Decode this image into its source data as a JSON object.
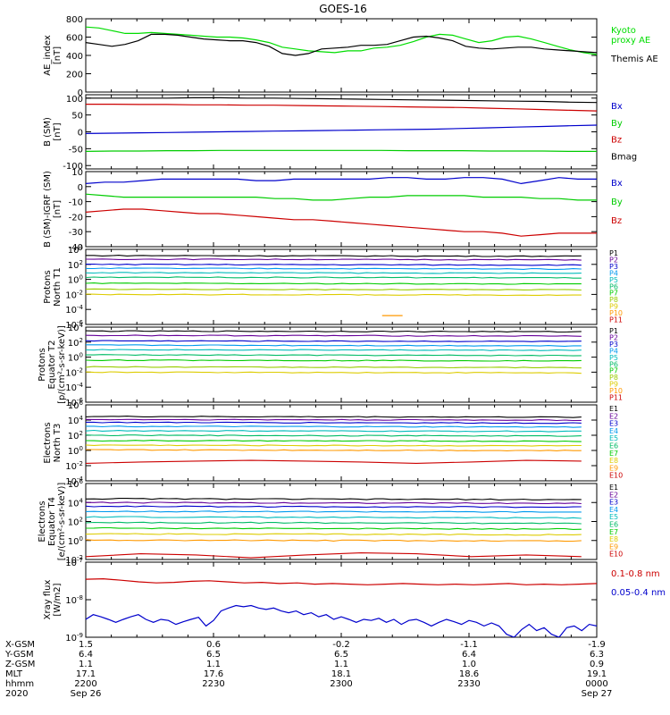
{
  "title": "GOES-16",
  "chart_data": [
    {
      "type": "line",
      "id": "ae",
      "ylabel": [
        "AE_index",
        "[nT]"
      ],
      "ylim": [
        0,
        800
      ],
      "yticks": [
        "0",
        "200",
        "400",
        "600",
        "800"
      ],
      "legend": [
        {
          "label": [
            "Kyoto",
            "proxy AE"
          ],
          "color": "#00dd00"
        },
        {
          "label": [
            "Themis AE"
          ],
          "color": "#000000"
        }
      ],
      "series": [
        {
          "name": "Kyoto proxy AE",
          "color": "#00dd00",
          "values": [
            710,
            700,
            670,
            640,
            640,
            650,
            640,
            630,
            620,
            610,
            600,
            600,
            590,
            570,
            540,
            490,
            470,
            450,
            440,
            430,
            450,
            450,
            480,
            490,
            510,
            550,
            600,
            630,
            620,
            580,
            540,
            560,
            600,
            610,
            580,
            540,
            500,
            460,
            430,
            410
          ]
        },
        {
          "name": "Themis AE",
          "color": "#000000",
          "values": [
            540,
            520,
            500,
            520,
            560,
            630,
            630,
            620,
            600,
            580,
            570,
            560,
            560,
            540,
            500,
            420,
            400,
            420,
            470,
            480,
            490,
            510,
            510,
            520,
            560,
            600,
            610,
            590,
            560,
            500,
            480,
            470,
            480,
            490,
            490,
            470,
            460,
            450,
            440,
            430
          ]
        }
      ]
    },
    {
      "type": "line",
      "id": "bsm",
      "ylabel": [
        "B (SM)",
        "[nT]"
      ],
      "ylim": [
        -110,
        110
      ],
      "yticks": [
        "-100",
        "-50",
        "0",
        "50",
        "100"
      ],
      "legend": [
        {
          "label": [
            "Bx"
          ],
          "color": "#0000cc"
        },
        {
          "label": [
            "By"
          ],
          "color": "#00cc00"
        },
        {
          "label": [
            "Bz"
          ],
          "color": "#cc0000"
        },
        {
          "label": [
            "Bmag"
          ],
          "color": "#000000"
        }
      ],
      "series": [
        {
          "name": "Bx",
          "color": "#0000cc",
          "values": [
            -5,
            -4,
            -3,
            -2,
            -1,
            0,
            1,
            2,
            3,
            4,
            5,
            6,
            7,
            8,
            10,
            12,
            14,
            16,
            18,
            20
          ]
        },
        {
          "name": "By",
          "color": "#00cc00",
          "values": [
            -58,
            -57,
            -57,
            -56,
            -56,
            -55,
            -55,
            -55,
            -55,
            -55,
            -55,
            -55,
            -56,
            -56,
            -56,
            -57,
            -57,
            -57,
            -58,
            -58
          ]
        },
        {
          "name": "Bz",
          "color": "#cc0000",
          "values": [
            82,
            82,
            81,
            81,
            80,
            80,
            79,
            79,
            78,
            77,
            76,
            75,
            74,
            73,
            72,
            70,
            68,
            66,
            64,
            62
          ]
        },
        {
          "name": "Bmag",
          "color": "#000000",
          "values": [
            100,
            100,
            100,
            100,
            101,
            101,
            100,
            100,
            99,
            98,
            97,
            96,
            95,
            94,
            93,
            92,
            91,
            90,
            88,
            87
          ]
        }
      ]
    },
    {
      "type": "line",
      "id": "dbsm",
      "ylabel": [
        "B (SM)-IGRF (SM)",
        "[nT]"
      ],
      "ylim": [
        -40,
        10
      ],
      "yticks": [
        "-40",
        "-30",
        "-20",
        "-10",
        "0",
        "10"
      ],
      "legend": [
        {
          "label": [
            "Bx"
          ],
          "color": "#0000cc"
        },
        {
          "label": [
            "By"
          ],
          "color": "#00cc00"
        },
        {
          "label": [
            "Bz"
          ],
          "color": "#cc0000"
        }
      ],
      "series": [
        {
          "name": "Bx",
          "color": "#0000cc",
          "values": [
            2,
            3,
            3,
            4,
            5,
            5,
            5,
            5,
            5,
            4,
            4,
            5,
            5,
            5,
            5,
            5,
            6,
            6,
            5,
            5,
            6,
            6,
            5,
            2,
            4,
            6,
            5,
            5
          ]
        },
        {
          "name": "By",
          "color": "#00cc00",
          "values": [
            -5,
            -6,
            -7,
            -7,
            -7,
            -7,
            -7,
            -7,
            -7,
            -7,
            -8,
            -8,
            -9,
            -9,
            -8,
            -7,
            -7,
            -6,
            -6,
            -6,
            -6,
            -7,
            -7,
            -7,
            -8,
            -8,
            -9,
            -9
          ]
        },
        {
          "name": "Bz",
          "color": "#cc0000",
          "values": [
            -17,
            -16,
            -15,
            -15,
            -16,
            -17,
            -18,
            -18,
            -19,
            -20,
            -21,
            -22,
            -22,
            -23,
            -24,
            -25,
            -26,
            -27,
            -28,
            -29,
            -30,
            -30,
            -31,
            -33,
            -32,
            -31,
            -31,
            -31
          ]
        }
      ]
    },
    {
      "type": "line",
      "log": true,
      "id": "pnt1",
      "ylabel": [
        "Protons",
        "North T1"
      ],
      "ylim": [
        1e-06,
        10000
      ],
      "yticks": [
        "10^4",
        "10^2",
        "10^0",
        "10^-2",
        "10^-4",
        "10^-6"
      ],
      "channels": [
        "P1",
        "P2",
        "P3",
        "P4",
        "P5",
        "P6",
        "P7",
        "P8",
        "P9",
        "P10",
        "P11"
      ],
      "channel_colors": [
        "#000000",
        "#660099",
        "#0000cc",
        "#0099ee",
        "#00bbbb",
        "#00bb66",
        "#00cc00",
        "#99cc00",
        "#ddcc00",
        "#ff9900",
        "#cc0000"
      ],
      "levels": [
        1500,
        500,
        100,
        30,
        8,
        2,
        0.3,
        0.05,
        0.01,
        null,
        null
      ],
      "segment": {
        "channel": "P10",
        "x": [
          0.58,
          0.62
        ],
        "y": 1.5e-05
      }
    },
    {
      "type": "line",
      "log": true,
      "id": "pet2",
      "ylabel": [
        "Protons",
        "Equator T2",
        "[p/(cm²-s-sr-keV)]"
      ],
      "ylim": [
        1e-06,
        10000
      ],
      "yticks": [
        "10^4",
        "10^2",
        "10^0",
        "10^-2",
        "10^-4",
        "10^-6"
      ],
      "channels": [
        "P1",
        "P2",
        "P3",
        "P4",
        "P5",
        "P6",
        "P7",
        "P8",
        "P9",
        "P10",
        "P11"
      ],
      "channel_colors": [
        "#000000",
        "#660099",
        "#0000cc",
        "#0099ee",
        "#00bbbb",
        "#00bb66",
        "#00cc00",
        "#99cc00",
        "#ddcc00",
        "#ff9900",
        "#cc0000"
      ],
      "levels": [
        3000,
        800,
        150,
        40,
        10,
        2,
        0.4,
        0.05,
        0.01,
        null,
        null
      ]
    },
    {
      "type": "line",
      "log": true,
      "id": "ent3",
      "ylabel": [
        "Electrons",
        "North T3"
      ],
      "ylim": [
        0.0001,
        1000000
      ],
      "yticks": [
        "10^6",
        "10^4",
        "10^2",
        "10^0",
        "10^-2",
        "10^-4"
      ],
      "channels": [
        "E1",
        "E2",
        "E3",
        "E4",
        "E5",
        "E6",
        "E7",
        "E8",
        "E9",
        "E10"
      ],
      "channel_colors": [
        "#000000",
        "#660099",
        "#0000cc",
        "#0099ee",
        "#00bbbb",
        "#00bb66",
        "#00cc00",
        "#ddcc00",
        "#ff9900",
        "#cc0000"
      ],
      "levels": [
        30000,
        12000,
        5000,
        1500,
        400,
        100,
        20,
        5,
        1.2,
        null
      ],
      "noisy": {
        "channel": "E10",
        "values": [
          0.02,
          0.03,
          0.04,
          0.05,
          0.04,
          0.03,
          0.02,
          0.03,
          0.05,
          0.04
        ]
      }
    },
    {
      "type": "line",
      "log": true,
      "id": "eet4",
      "ylabel": [
        "Electrons",
        "Equator T4",
        "[e/(cm²-s-sr-keV)]"
      ],
      "ylim": [
        0.01,
        1000000
      ],
      "yticks": [
        "10^6",
        "10^4",
        "10^2",
        "10^0",
        "10^-2"
      ],
      "channels": [
        "E1",
        "E2",
        "E3",
        "E4",
        "E5",
        "E6",
        "E7",
        "E8",
        "E9",
        "E10"
      ],
      "channel_colors": [
        "#000000",
        "#660099",
        "#0000cc",
        "#0099ee",
        "#00bbbb",
        "#00bb66",
        "#00cc00",
        "#ddcc00",
        "#ff9900",
        "#cc0000"
      ],
      "levels": [
        25000,
        10000,
        4000,
        1200,
        300,
        80,
        20,
        5,
        1.1,
        null
      ],
      "noisy": {
        "channel": "E10",
        "values": [
          0.02,
          0.04,
          0.03,
          0.015,
          0.03,
          0.05,
          0.04,
          0.02,
          0.03,
          0.02
        ]
      }
    },
    {
      "type": "line",
      "log": true,
      "id": "xray",
      "ylabel": [
        "Xray flux",
        "[W/m2]"
      ],
      "ylim": [
        1e-09,
        1e-07
      ],
      "yticks": [
        "10^-7",
        "10^-8",
        "10^-9"
      ],
      "legend": [
        {
          "label": [
            "0.1-0.8 nm"
          ],
          "color": "#cc0000"
        },
        {
          "label": [
            "0.05-0.4 nm"
          ],
          "color": "#0000cc"
        }
      ],
      "series": [
        {
          "name": "0.1-0.8 nm",
          "color": "#cc0000",
          "values": [
            3.5e-08,
            3.6e-08,
            3.3e-08,
            3e-08,
            2.8e-08,
            2.9e-08,
            3.1e-08,
            3.2e-08,
            3e-08,
            2.8e-08,
            2.9e-08,
            2.7e-08,
            2.8e-08,
            2.6e-08,
            2.7e-08,
            2.6e-08,
            2.5e-08,
            2.6e-08,
            2.7e-08,
            2.6e-08,
            2.5e-08,
            2.6e-08,
            2.5e-08,
            2.6e-08,
            2.7e-08,
            2.5e-08,
            2.6e-08,
            2.5e-08,
            2.6e-08,
            2.7e-08
          ]
        },
        {
          "name": "0.05-0.4 nm",
          "color": "#0000cc",
          "values": [
            3e-09,
            4e-09,
            3.5e-09,
            3e-09,
            2.5e-09,
            3e-09,
            3.5e-09,
            4e-09,
            3e-09,
            2.5e-09,
            3e-09,
            2.8e-09,
            2.2e-09,
            2.6e-09,
            3e-09,
            3.4e-09,
            2e-09,
            2.8e-09,
            5e-09,
            6e-09,
            7e-09,
            6.5e-09,
            7e-09,
            6e-09,
            5.5e-09,
            6e-09,
            5e-09,
            4.5e-09,
            5e-09,
            4e-09,
            4.5e-09,
            3.5e-09,
            4e-09,
            3e-09,
            3.5e-09,
            3e-09,
            2.5e-09,
            3e-09,
            2.8e-09,
            3.2e-09,
            2.5e-09,
            3e-09,
            2.2e-09,
            2.8e-09,
            3e-09,
            2.5e-09,
            2e-09,
            2.5e-09,
            3e-09,
            2.6e-09,
            2.2e-09,
            2.8e-09,
            2.5e-09,
            2e-09,
            2.4e-09,
            2e-09,
            1.2e-09,
            1e-09,
            1.6e-09,
            2.2e-09,
            1.5e-09,
            1.8e-09,
            1.2e-09,
            1e-09,
            1.8e-09,
            2e-09,
            1.5e-09,
            2.2e-09,
            2e-09
          ]
        }
      ]
    }
  ],
  "footer": {
    "row_labels": [
      "X-GSM",
      "Y-GSM",
      "Z-GSM",
      "MLT",
      "hhmm",
      "2020"
    ],
    "columns": [
      {
        "values": [
          "1.5",
          "6.4",
          "1.1",
          "17.1",
          "2200",
          "Sep 26"
        ]
      },
      {
        "values": [
          "0.6",
          "6.5",
          "1.1",
          "17.6",
          "2230",
          ""
        ]
      },
      {
        "values": [
          "-0.2",
          "6.5",
          "1.1",
          "18.1",
          "2300",
          ""
        ]
      },
      {
        "values": [
          "-1.1",
          "6.4",
          "1.0",
          "18.6",
          "2330",
          ""
        ]
      },
      {
        "values": [
          "-1.9",
          "6.3",
          "0.9",
          "19.1",
          "0000",
          "Sep 27"
        ]
      }
    ]
  }
}
